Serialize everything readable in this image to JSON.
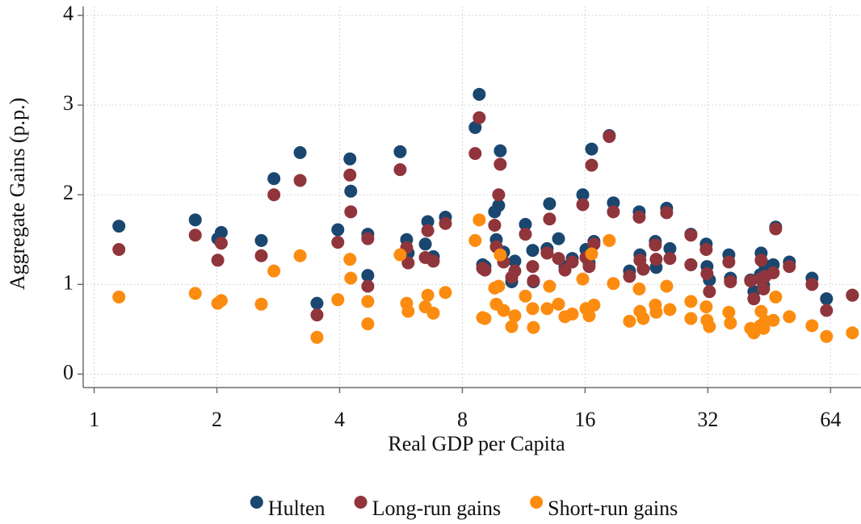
{
  "chart_data": {
    "type": "scatter",
    "x_label": "Real GDP per Capita",
    "y_label": "Aggregate Gains (p.p.)",
    "xscale": "log",
    "xlim": [
      0.94,
      76
    ],
    "ylim": [
      -0.15,
      4.1
    ],
    "xticks": [
      1,
      2,
      4,
      8,
      16,
      32,
      64
    ],
    "yticks": [
      0,
      1,
      2,
      3,
      4
    ],
    "grid": true,
    "legend": "bottom",
    "x": [
      1.15,
      1.77,
      2.01,
      2.05,
      2.57,
      2.76,
      3.2,
      3.52,
      3.96,
      4.24,
      4.26,
      4.69,
      4.69,
      5.63,
      5.84,
      5.89,
      6.49,
      6.58,
      6.79,
      7.27,
      8.6,
      8.8,
      8.97,
      9.09,
      9.6,
      9.69,
      9.82,
      9.91,
      10.1,
      10.57,
      10.76,
      11.42,
      11.9,
      11.95,
      12.91,
      13.09,
      13.77,
      14.28,
      14.88,
      15.79,
      16.08,
      16.37,
      16.6,
      16.82,
      18.34,
      18.77,
      20.56,
      21.72,
      21.81,
      22.22,
      23.79,
      23.9,
      25.36,
      25.83,
      29.08,
      29.08,
      31.71,
      31.85,
      32.29,
      36.03,
      36.36,
      40.75,
      41.5,
      43.05,
      43.24,
      43.84,
      44.23,
      46.3,
      46.94,
      50.71,
      57.63,
      62.55,
      72.39
    ],
    "series": [
      {
        "name": "Hulten",
        "color": "#1a476f",
        "values": [
          1.65,
          1.72,
          1.51,
          1.58,
          1.49,
          2.18,
          2.47,
          0.79,
          1.61,
          2.4,
          2.04,
          1.56,
          1.1,
          2.48,
          1.5,
          1.35,
          1.45,
          1.7,
          1.31,
          1.75,
          2.75,
          3.12,
          1.22,
          1.2,
          1.81,
          1.5,
          1.88,
          2.49,
          1.36,
          1.03,
          1.26,
          1.67,
          1.38,
          1.03,
          1.4,
          1.9,
          1.51,
          1.2,
          1.29,
          2.0,
          1.39,
          1.24,
          2.51,
          1.48,
          2.66,
          1.91,
          1.15,
          1.81,
          1.33,
          1.17,
          1.48,
          1.19,
          1.85,
          1.4,
          1.56,
          1.22,
          1.45,
          1.2,
          1.05,
          1.33,
          1.07,
          1.05,
          0.92,
          1.11,
          1.35,
          0.99,
          1.21,
          1.22,
          1.64,
          1.25,
          1.07,
          0.84,
          0.88
        ]
      },
      {
        "name": "Long-run gains",
        "color": "#90353b",
        "values": [
          1.39,
          1.55,
          1.27,
          1.46,
          1.32,
          2.0,
          2.16,
          0.66,
          1.47,
          2.22,
          1.81,
          1.51,
          0.98,
          2.28,
          1.41,
          1.24,
          1.3,
          1.6,
          1.26,
          1.68,
          2.46,
          2.86,
          1.18,
          1.16,
          1.66,
          1.42,
          2.0,
          2.34,
          1.25,
          1.08,
          1.15,
          1.56,
          1.2,
          1.04,
          1.35,
          1.73,
          1.29,
          1.16,
          1.25,
          1.89,
          1.3,
          1.2,
          2.33,
          1.45,
          2.65,
          1.81,
          1.09,
          1.75,
          1.27,
          1.17,
          1.44,
          1.28,
          1.8,
          1.29,
          1.55,
          1.22,
          1.39,
          1.12,
          0.92,
          1.25,
          1.03,
          1.04,
          0.84,
          1.06,
          1.27,
          0.95,
          1.09,
          1.13,
          1.62,
          1.2,
          1.0,
          0.71,
          0.88
        ]
      },
      {
        "name": "Short-run gains",
        "color": "#fb8c10",
        "values": [
          0.86,
          0.9,
          0.79,
          0.82,
          0.78,
          1.15,
          1.32,
          0.41,
          0.83,
          1.28,
          1.07,
          0.81,
          0.56,
          1.33,
          0.79,
          0.7,
          0.75,
          0.88,
          0.68,
          0.91,
          1.49,
          1.72,
          0.63,
          0.62,
          0.96,
          0.78,
          0.98,
          1.33,
          0.71,
          0.53,
          0.65,
          0.87,
          0.73,
          0.52,
          0.73,
          0.98,
          0.78,
          0.64,
          0.67,
          1.06,
          0.73,
          0.65,
          1.34,
          0.77,
          1.49,
          1.01,
          0.59,
          0.95,
          0.7,
          0.62,
          0.77,
          0.69,
          0.98,
          0.72,
          0.81,
          0.62,
          0.75,
          0.6,
          0.53,
          0.69,
          0.57,
          0.51,
          0.46,
          0.54,
          0.7,
          0.51,
          0.59,
          0.6,
          0.86,
          0.64,
          0.54,
          0.42,
          0.46
        ]
      }
    ]
  }
}
